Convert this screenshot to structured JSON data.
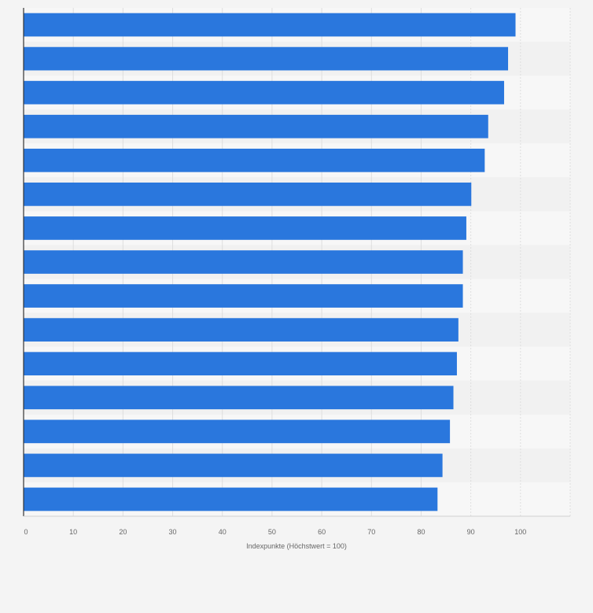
{
  "chart_data": {
    "type": "bar",
    "orientation": "horizontal",
    "categories": [
      "",
      "",
      "",
      "",
      "",
      "",
      "",
      "",
      "",
      "",
      "",
      "",
      "",
      "",
      ""
    ],
    "values": [
      99,
      97.5,
      96.7,
      93.5,
      92.8,
      90.1,
      89.1,
      88.4,
      88.4,
      87.5,
      87.2,
      86.5,
      85.8,
      84.3,
      83.3
    ],
    "title": "",
    "xlabel": "Indexpunkte (Höchstwert = 100)",
    "ylabel": "",
    "xlim": [
      0,
      110
    ],
    "xticks": [
      0,
      10,
      20,
      30,
      40,
      50,
      60,
      70,
      80,
      90,
      100
    ],
    "xtick_labels": [
      "0",
      "10",
      "20",
      "30",
      "40",
      "50",
      "60",
      "70",
      "80",
      "90",
      "100"
    ],
    "grid": true,
    "legend": "none",
    "colors": {
      "bar": "#2a77dd",
      "background": "#f4f4f4",
      "band_light": "#f7f7f7",
      "band_dark": "#f1f1f1",
      "grid": "#dedede",
      "axis": "#333333",
      "text": "#666666"
    }
  }
}
